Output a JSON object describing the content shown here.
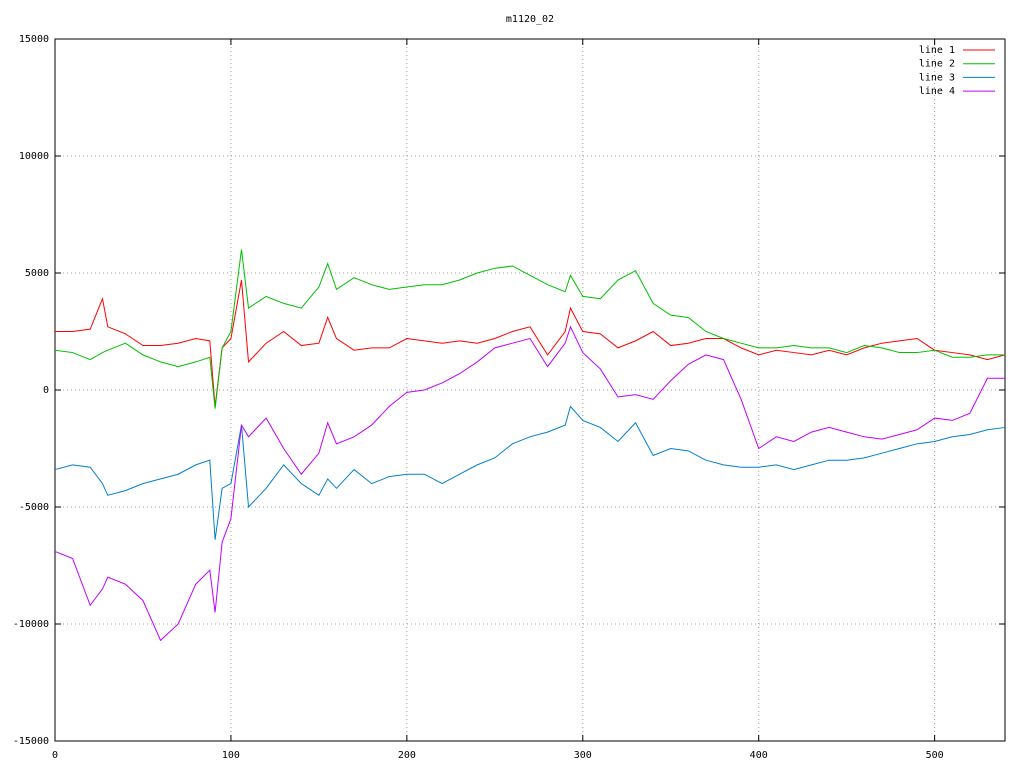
{
  "chart_data": {
    "type": "line",
    "title": "m1120_02",
    "x": [
      0,
      10,
      20,
      27,
      30,
      40,
      50,
      60,
      70,
      80,
      88,
      91,
      95,
      100,
      106,
      110,
      120,
      130,
      140,
      150,
      155,
      160,
      170,
      180,
      190,
      200,
      210,
      220,
      230,
      240,
      250,
      260,
      270,
      280,
      290,
      293,
      300,
      310,
      320,
      330,
      340,
      350,
      360,
      370,
      380,
      390,
      400,
      410,
      420,
      430,
      440,
      450,
      460,
      470,
      480,
      490,
      500,
      510,
      520,
      530,
      540
    ],
    "series": [
      {
        "name": "line 1",
        "color": "#ff0000",
        "values": [
          2500,
          2500,
          2600,
          3900,
          2700,
          2400,
          1900,
          1900,
          2000,
          2200,
          2100,
          -700,
          1800,
          2200,
          4700,
          1200,
          2000,
          2500,
          1900,
          2000,
          3100,
          2200,
          1700,
          1800,
          1800,
          2200,
          2100,
          2000,
          2100,
          2000,
          2200,
          2500,
          2700,
          1500,
          2500,
          3500,
          2500,
          2400,
          1800,
          2100,
          2500,
          1900,
          2000,
          2200,
          2200,
          1800,
          1500,
          1700,
          1600,
          1500,
          1700,
          1500,
          1800,
          2000,
          2100,
          2200,
          1700,
          1600,
          1500,
          1300,
          1500
        ]
      },
      {
        "name": "line 2",
        "color": "#00c000",
        "values": [
          1700,
          1600,
          1300,
          1600,
          1700,
          2000,
          1500,
          1200,
          1000,
          1200,
          1400,
          -800,
          1800,
          2500,
          6000,
          3500,
          4000,
          3700,
          3500,
          4400,
          5400,
          4300,
          4800,
          4500,
          4300,
          4400,
          4500,
          4500,
          4700,
          5000,
          5200,
          5300,
          4900,
          4500,
          4200,
          4900,
          4000,
          3900,
          4700,
          5100,
          3700,
          3200,
          3100,
          2500,
          2200,
          2000,
          1800,
          1800,
          1900,
          1800,
          1800,
          1600,
          1900,
          1800,
          1600,
          1600,
          1700,
          1400,
          1400,
          1500,
          1500
        ]
      },
      {
        "name": "line 3",
        "color": "#0080d0",
        "values": [
          -3400,
          -3200,
          -3300,
          -4000,
          -4500,
          -4300,
          -4000,
          -3800,
          -3600,
          -3200,
          -3000,
          -6400,
          -4200,
          -4000,
          -1500,
          -5000,
          -4200,
          -3200,
          -4000,
          -4500,
          -3800,
          -4200,
          -3400,
          -4000,
          -3700,
          -3600,
          -3600,
          -4000,
          -3600,
          -3200,
          -2900,
          -2300,
          -2000,
          -1800,
          -1500,
          -700,
          -1300,
          -1600,
          -2200,
          -1400,
          -2800,
          -2500,
          -2600,
          -3000,
          -3200,
          -3300,
          -3300,
          -3200,
          -3400,
          -3200,
          -3000,
          -3000,
          -2900,
          -2700,
          -2500,
          -2300,
          -2200,
          -2000,
          -1900,
          -1700,
          -1600
        ]
      },
      {
        "name": "line 4",
        "color": "#c000ff",
        "values": [
          -6900,
          -7200,
          -9200,
          -8500,
          -8000,
          -8300,
          -9000,
          -10700,
          -10000,
          -8300,
          -7700,
          -9500,
          -6500,
          -5500,
          -1500,
          -2000,
          -1200,
          -2500,
          -3600,
          -2700,
          -1400,
          -2300,
          -2000,
          -1500,
          -700,
          -100,
          0,
          300,
          700,
          1200,
          1800,
          2000,
          2200,
          1000,
          2000,
          2700,
          1600,
          900,
          -300,
          -200,
          -400,
          400,
          1100,
          1500,
          1300,
          -400,
          -2500,
          -2000,
          -2200,
          -1800,
          -1600,
          -1800,
          -2000,
          -2100,
          -1900,
          -1700,
          -1200,
          -1300,
          -1000,
          500,
          500
        ]
      }
    ],
    "xlim": [
      0,
      540
    ],
    "xticks": [
      0,
      100,
      200,
      300,
      400,
      500
    ],
    "ylim": [
      -15000,
      15000
    ],
    "yticks": [
      -15000,
      -10000,
      -5000,
      0,
      5000,
      10000,
      15000
    ],
    "grid": true,
    "legend": "top-right"
  }
}
